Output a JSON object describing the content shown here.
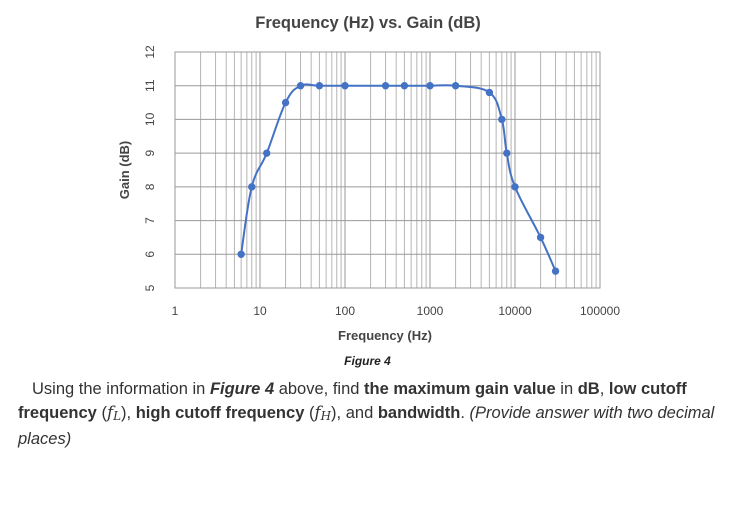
{
  "chart_data": {
    "type": "line",
    "title": "Frequency (Hz) vs. Gain (dB)",
    "xlabel": "Frequency (Hz)",
    "ylabel": "Gain (dB)",
    "xscale": "log",
    "xlim": [
      1,
      100000
    ],
    "ylim": [
      5,
      12
    ],
    "xticks": [
      "1",
      "10",
      "100",
      "1000",
      "10000",
      "100000"
    ],
    "yticks": [
      "5",
      "6",
      "7",
      "8",
      "9",
      "10",
      "11",
      "12"
    ],
    "grid": true,
    "series": [
      {
        "color": "#4472c4",
        "x": [
          6,
          8,
          12,
          20,
          30,
          50,
          100,
          300,
          500,
          1000,
          2000,
          5000,
          7000,
          8000,
          10000,
          20000,
          30000
        ],
        "y": [
          6,
          8,
          9,
          10.5,
          11,
          11,
          11,
          11,
          11,
          11,
          11,
          10.8,
          10,
          9,
          8,
          6.5,
          5.5
        ]
      }
    ]
  },
  "figure_label": "Figure 4",
  "question": {
    "p1": "Using the information in ",
    "ref": "Figure 4",
    "p2": " above, find ",
    "b1": "the maximum gain value",
    "p3": " in ",
    "b2": "dB",
    "p4": ", ",
    "b3": "low cutoff frequency",
    "p5": " (",
    "var_f": "f",
    "sub_L": "L",
    "p6": "), ",
    "b4": "high cutoff frequency",
    "p7": " (",
    "sub_H": "H",
    "p8": "), and ",
    "b5": "bandwidth",
    "p9": ". ",
    "note": "(Provide answer with two decimal places)"
  }
}
